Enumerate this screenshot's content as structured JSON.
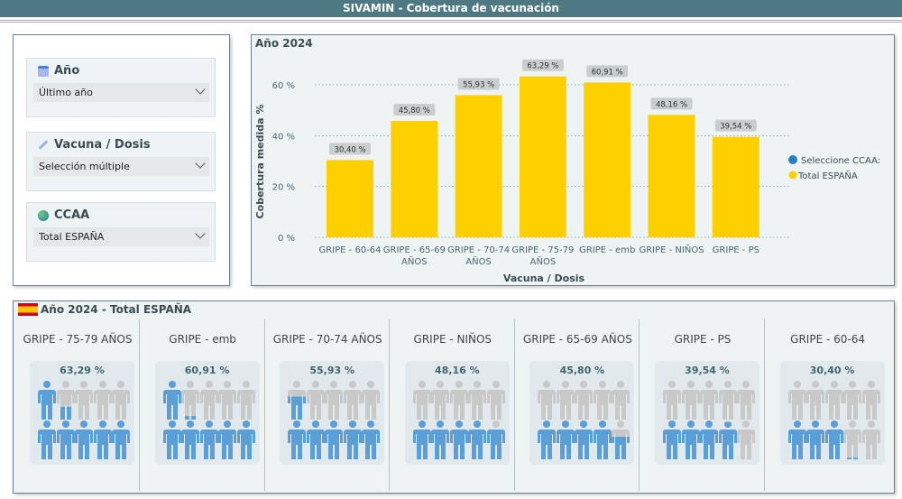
{
  "header": {
    "title": "SIVAMIN - Cobertura de vacunación"
  },
  "filters": [
    {
      "title": "Año",
      "icon": "calendar-icon",
      "value": "Último año"
    },
    {
      "title": "Vacuna / Dosis",
      "icon": "syringe-icon",
      "value": "Selección múltiple"
    },
    {
      "title": "CCAA",
      "icon": "globe-icon",
      "value": "Total ESPAÑA"
    }
  ],
  "chart_data": {
    "type": "bar",
    "title": "Año 2024",
    "xlabel": "Vacuna / Dosis",
    "ylabel": "Cobertura medida %",
    "categories": [
      "GRIPE - 60-64",
      "GRIPE - 65-69 AÑOS",
      "GRIPE - 70-74 AÑOS",
      "GRIPE - 75-79 AÑOS",
      "GRIPE - emb",
      "GRIPE - NIÑOS",
      "GRIPE - PS"
    ],
    "values": [
      30.4,
      45.8,
      55.93,
      63.29,
      60.91,
      48.16,
      39.54
    ],
    "data_labels": [
      "30,40 %",
      "45,80 %",
      "55,93 %",
      "63,29 %",
      "60,91 %",
      "48,16 %",
      "39,54 %"
    ],
    "yticks": [
      "0 %",
      "20 %",
      "40 %",
      "60 %"
    ],
    "ylim": [
      0,
      65
    ],
    "grid": true,
    "bar_color": "#FFD000",
    "legend": {
      "title": "Seleccione CCAA:",
      "items": [
        {
          "name": "Total ESPAÑA",
          "color": "#FFD000"
        }
      ],
      "position": "right"
    }
  },
  "bottom": {
    "title": "Año 2024 - Total ESPAÑA",
    "items": [
      {
        "label": "GRIPE - 75-79 AÑOS",
        "pct_text": "63,29 %",
        "value": 63.29
      },
      {
        "label": "GRIPE - emb",
        "pct_text": "60,91 %",
        "value": 60.91
      },
      {
        "label": "GRIPE - 70-74 AÑOS",
        "pct_text": "55,93 %",
        "value": 55.93
      },
      {
        "label": "GRIPE - NIÑOS",
        "pct_text": "48,16 %",
        "value": 48.16
      },
      {
        "label": "GRIPE - 65-69 AÑOS",
        "pct_text": "45,80 %",
        "value": 45.8
      },
      {
        "label": "GRIPE - PS",
        "pct_text": "39,54 %",
        "value": 39.54
      },
      {
        "label": "GRIPE - 60-64",
        "pct_text": "30,40 %",
        "value": 30.4
      }
    ],
    "fill_color": "#5B9FD9",
    "empty_color": "#C9C9C9"
  }
}
